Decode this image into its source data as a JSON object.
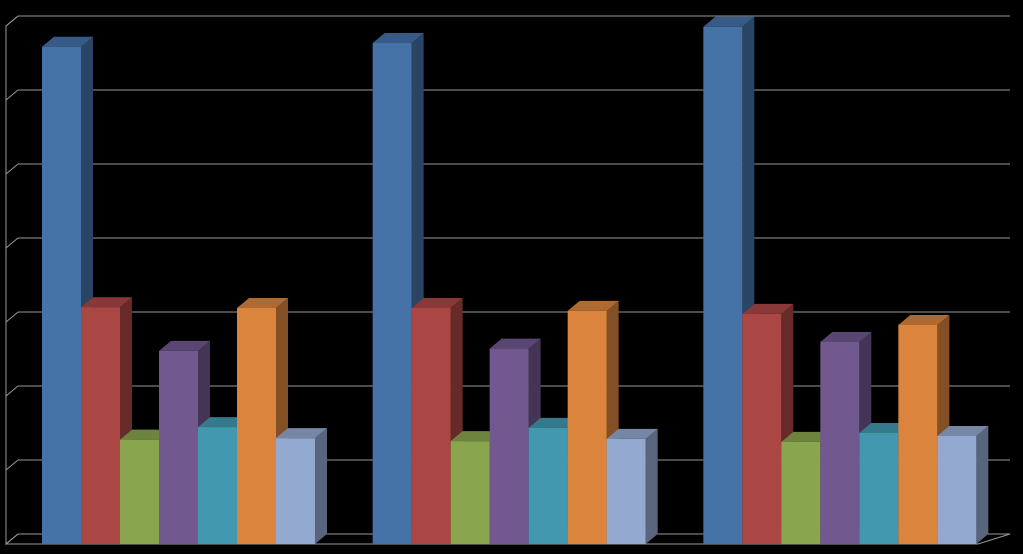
{
  "chart_data": {
    "type": "bar3d",
    "categories": [
      null,
      null,
      null
    ],
    "series": [
      {
        "color": "#4572a7",
        "values": [
          6.72,
          6.77,
          6.99
        ]
      },
      {
        "color": "#aa4643",
        "values": [
          3.2,
          3.19,
          3.11
        ]
      },
      {
        "color": "#89a54e",
        "values": [
          1.41,
          1.39,
          1.38
        ]
      },
      {
        "color": "#71588f",
        "values": [
          2.61,
          2.64,
          2.73
        ]
      },
      {
        "color": "#4198af",
        "values": [
          1.58,
          1.57,
          1.5
        ]
      },
      {
        "color": "#db843d",
        "values": [
          3.19,
          3.15,
          2.96
        ]
      },
      {
        "color": "#93a9cf",
        "values": [
          1.43,
          1.42,
          1.46
        ]
      }
    ],
    "ylim": [
      0,
      7
    ],
    "yticks": [
      0,
      1,
      2,
      3,
      4,
      5,
      6,
      7
    ],
    "grid": true
  }
}
